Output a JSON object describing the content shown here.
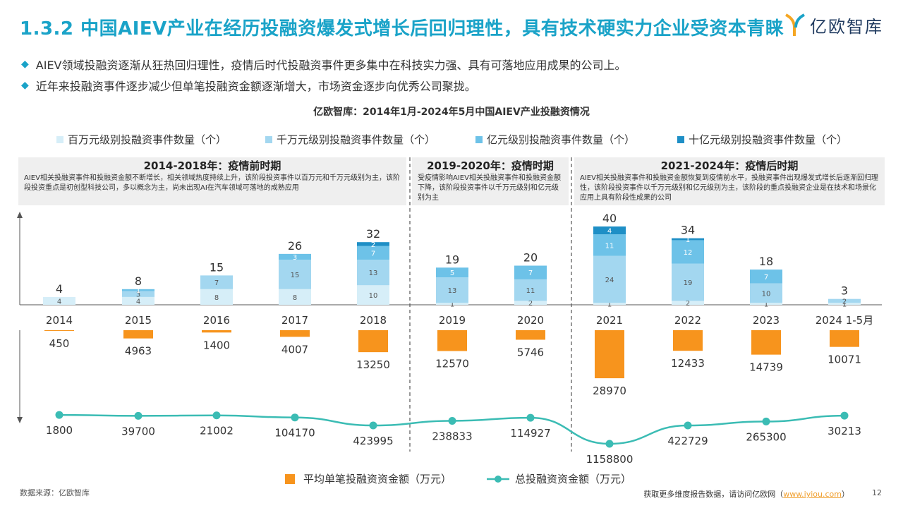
{
  "header": {
    "title": "1.3.2 中国AIEV产业在经历投融资爆发式增长后回归理性，具有技术硬实力企业受资本青睐",
    "logo_text": "亿欧智库"
  },
  "bullets": [
    "AIEV领域投融资逐渐从狂热回归理性，疫情后时代投融资事件更多集中在科技实力强、具有可落地应用成果的公司上。",
    "近年来投融资事件逐步减少但单笔投融资金额逐渐增大，市场资金逐步向优秀公司聚拢。"
  ],
  "periods": [
    {
      "heading": "2014-2018年：疫情前时期",
      "desc": "AIEV相关投融资事件和投融资金额不断增长，相关领域热度持续上升，该阶段投资事件以百万元和千万元级别为主，该阶段投资重点是初创型科技公司，多以概念为主，尚未出现AI在汽车领域可落地的成熟应用"
    },
    {
      "heading": "2019-2020年：疫情时期",
      "desc": "受疫情影响AIEV相关投融资事件和投融资金额下降，该阶段投资事件以千万元级别和亿元级别为主"
    },
    {
      "heading": "2021-2024年：疫情后时期",
      "desc": "AIEV相关投融资事件和投融资金额恢复到疫情前水平，投融资事件出现爆发式增长后逐渐回归理性，该阶段投资事件以千万元级别和亿元级别为主，该阶段的重点投融资企业是在技术和场景化应用上具有阶段性成果的公司"
    }
  ],
  "colors": {
    "accent": "#1aa3c8",
    "s_million": "#d6eef8",
    "s_tenmillion": "#a3d7f0",
    "s_hundredmillion": "#6dc2e8",
    "s_billion": "#1e8fc6",
    "avg_bar": "#f7941d",
    "line": "#3bbcb4"
  },
  "chart_data": {
    "type": "bar",
    "title": "亿欧智库：2014年1月-2024年5月中国AIEV产业投融资情况",
    "categories": [
      "2014",
      "2015",
      "2016",
      "2017",
      "2018",
      "2019",
      "2020",
      "2021",
      "2022",
      "2023",
      "2024 1-5月"
    ],
    "series": [
      {
        "name": "百万元级别投融资事件数量（个）",
        "values": [
          4,
          4,
          8,
          8,
          10,
          1,
          2,
          1,
          2,
          1,
          1
        ]
      },
      {
        "name": "千万元级别投融资事件数量（个）",
        "values": [
          0,
          3,
          7,
          15,
          13,
          13,
          11,
          24,
          19,
          10,
          2
        ]
      },
      {
        "name": "亿元级别投融资事件数量（个）",
        "values": [
          0,
          1,
          0,
          3,
          7,
          5,
          7,
          11,
          12,
          7,
          0
        ]
      },
      {
        "name": "十亿元级别投融资事件数量（个）",
        "values": [
          0,
          0,
          0,
          0,
          2,
          0,
          0,
          4,
          1,
          0,
          0
        ]
      }
    ],
    "totals": [
      4,
      8,
      15,
      26,
      32,
      19,
      20,
      40,
      34,
      18,
      3
    ],
    "avg_series": {
      "name": "平均单笔投融资资金额（万元）",
      "values": [
        450,
        4963,
        1400,
        4007,
        13250,
        12570,
        5746,
        28970,
        12433,
        14739,
        10071
      ]
    },
    "line_series": {
      "name": "总投融资资金额（万元）",
      "values": [
        1800,
        39700,
        21002,
        104170,
        423995,
        238833,
        114927,
        1158800,
        422729,
        265300,
        30213
      ]
    }
  },
  "footer": {
    "source": "数据来源：亿欧智库",
    "cta": "获取更多维度报告数据，请访问亿欧网（",
    "link": "www.iyiou.com",
    "cta_end": "）",
    "page": "12"
  }
}
